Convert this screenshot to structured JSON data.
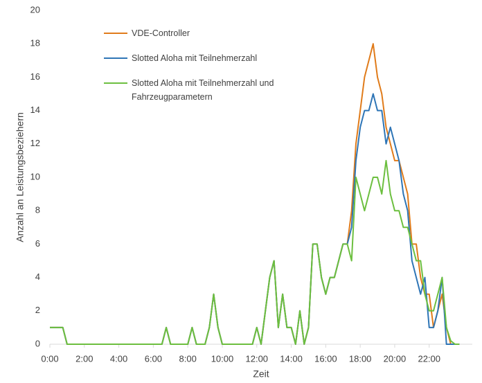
{
  "chart_data": {
    "type": "line",
    "xlabel": "Zeit",
    "ylabel": "Anzahl an Leistungsbeziehern",
    "x": [
      0,
      0.25,
      0.5,
      0.75,
      1,
      1.25,
      1.5,
      1.75,
      2,
      2.25,
      2.5,
      2.75,
      3,
      3.25,
      3.5,
      3.75,
      4,
      4.25,
      4.5,
      4.75,
      5,
      5.25,
      5.5,
      5.75,
      6,
      6.25,
      6.5,
      6.75,
      7,
      7.25,
      7.5,
      7.75,
      8,
      8.25,
      8.5,
      8.75,
      9,
      9.25,
      9.5,
      9.75,
      10,
      10.25,
      10.5,
      10.75,
      11,
      11.25,
      11.5,
      11.75,
      12,
      12.25,
      12.5,
      12.75,
      13,
      13.25,
      13.5,
      13.75,
      14,
      14.25,
      14.5,
      14.75,
      15,
      15.25,
      15.5,
      15.75,
      16,
      16.25,
      16.5,
      16.75,
      17,
      17.25,
      17.5,
      17.75,
      18,
      18.25,
      18.5,
      18.75,
      19,
      19.25,
      19.5,
      19.75,
      20,
      20.25,
      20.5,
      20.75,
      21,
      21.25,
      21.5,
      21.75,
      22,
      22.25,
      22.5,
      22.75,
      23,
      23.25,
      23.5,
      23.75
    ],
    "series": [
      {
        "name": "VDE-Controller",
        "color": "#e07b1a",
        "values": [
          1,
          1,
          1,
          1,
          0,
          0,
          0,
          0,
          0,
          0,
          0,
          0,
          0,
          0,
          0,
          0,
          0,
          0,
          0,
          0,
          0,
          0,
          0,
          0,
          0,
          0,
          0,
          1,
          0,
          0,
          0,
          0,
          0,
          1,
          0,
          0,
          0,
          1,
          3,
          1,
          0,
          0,
          0,
          0,
          0,
          0,
          0,
          0,
          1,
          0,
          2,
          4,
          5,
          1,
          3,
          1,
          1,
          0,
          2,
          0,
          1,
          6,
          6,
          4,
          3,
          4,
          4,
          5,
          6,
          6,
          8,
          12,
          14,
          16,
          17,
          18,
          16,
          15,
          13,
          12,
          11,
          11,
          10,
          9,
          6,
          6,
          4,
          3,
          3,
          1,
          2,
          3,
          1,
          0,
          0,
          0
        ]
      },
      {
        "name": "Slotted Aloha mit Teilnehmerzahl",
        "color": "#2e75b6",
        "values": [
          1,
          1,
          1,
          1,
          0,
          0,
          0,
          0,
          0,
          0,
          0,
          0,
          0,
          0,
          0,
          0,
          0,
          0,
          0,
          0,
          0,
          0,
          0,
          0,
          0,
          0,
          0,
          1,
          0,
          0,
          0,
          0,
          0,
          1,
          0,
          0,
          0,
          1,
          3,
          1,
          0,
          0,
          0,
          0,
          0,
          0,
          0,
          0,
          1,
          0,
          2,
          4,
          5,
          1,
          3,
          1,
          1,
          0,
          2,
          0,
          1,
          6,
          6,
          4,
          3,
          4,
          4,
          5,
          6,
          6,
          7,
          11,
          13,
          14,
          14,
          15,
          14,
          14,
          12,
          13,
          12,
          11,
          9,
          8,
          5,
          4,
          3,
          4,
          1,
          1,
          2,
          4,
          0,
          0,
          0,
          0
        ]
      },
      {
        "name": "Slotted Aloha mit Teilnehmerzahl und Fahrzeugparametern",
        "color": "#6cbf3f",
        "values": [
          1,
          1,
          1,
          1,
          0,
          0,
          0,
          0,
          0,
          0,
          0,
          0,
          0,
          0,
          0,
          0,
          0,
          0,
          0,
          0,
          0,
          0,
          0,
          0,
          0,
          0,
          0,
          1,
          0,
          0,
          0,
          0,
          0,
          1,
          0,
          0,
          0,
          1,
          3,
          1,
          0,
          0,
          0,
          0,
          0,
          0,
          0,
          0,
          1,
          0,
          2,
          4,
          5,
          1,
          3,
          1,
          1,
          0,
          2,
          0,
          1,
          6,
          6,
          4,
          3,
          4,
          4,
          5,
          6,
          6,
          5,
          10,
          9,
          8,
          9,
          10,
          10,
          9,
          11,
          9,
          8,
          8,
          7,
          7,
          6,
          5,
          5,
          3,
          2,
          2,
          3,
          4,
          1,
          0.2,
          0,
          0
        ]
      }
    ],
    "xlim": [
      0,
      24.5
    ],
    "xticks": [
      {
        "value": 0,
        "label": "0:00"
      },
      {
        "value": 2,
        "label": "2:00"
      },
      {
        "value": 4,
        "label": "4:00"
      },
      {
        "value": 6,
        "label": "6:00"
      },
      {
        "value": 8,
        "label": "8:00"
      },
      {
        "value": 10,
        "label": "10:00"
      },
      {
        "value": 12,
        "label": "12:00"
      },
      {
        "value": 14,
        "label": "14:00"
      },
      {
        "value": 16,
        "label": "16:00"
      },
      {
        "value": 18,
        "label": "18:00"
      },
      {
        "value": 20,
        "label": "20:00"
      },
      {
        "value": 22,
        "label": "22:00"
      }
    ],
    "ylim": [
      0,
      20
    ],
    "yticks": [
      0,
      2,
      4,
      6,
      8,
      10,
      12,
      14,
      16,
      18,
      20
    ],
    "grid": false,
    "legend": "top-left"
  }
}
